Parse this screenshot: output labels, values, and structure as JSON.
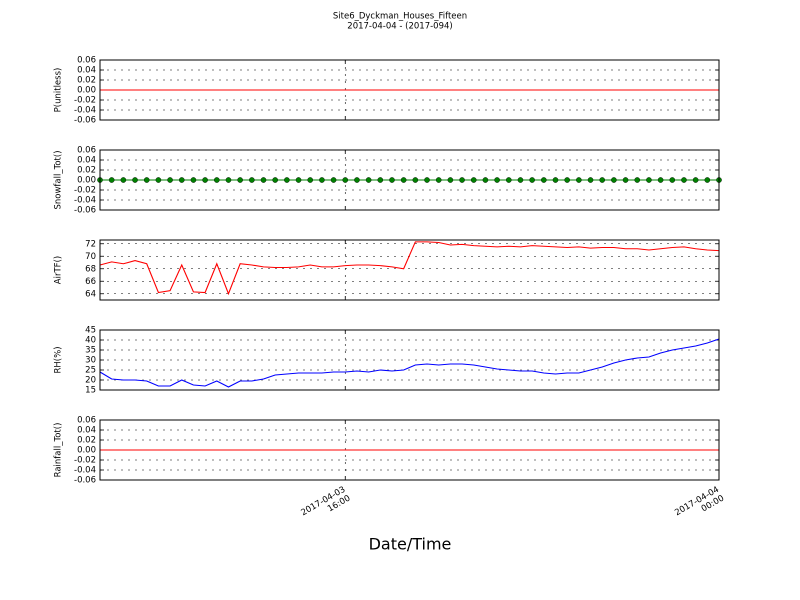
{
  "chart_data": [
    {
      "type": "line",
      "title": "Site6_Dyckman_Houses_Fifteen",
      "subtitle": "2017-04-04 - (2017-094)",
      "ylabel": "P(unitless)",
      "x": [
        "2017-04-03 10:45",
        "2017-04-03 11:00",
        "2017-04-03 11:15",
        "2017-04-03 11:30",
        "2017-04-03 11:45",
        "2017-04-03 12:00",
        "2017-04-03 12:15",
        "2017-04-03 12:30",
        "2017-04-03 12:45",
        "2017-04-03 13:00",
        "2017-04-03 13:15",
        "2017-04-03 13:30",
        "2017-04-03 13:45",
        "2017-04-03 14:00",
        "2017-04-03 14:15",
        "2017-04-03 14:30",
        "2017-04-03 14:45",
        "2017-04-03 15:00",
        "2017-04-03 15:15",
        "2017-04-03 15:30",
        "2017-04-03 15:45",
        "2017-04-03 16:00",
        "2017-04-03 16:15",
        "2017-04-03 16:30",
        "2017-04-03 16:45",
        "2017-04-03 17:00",
        "2017-04-03 17:15",
        "2017-04-03 17:30",
        "2017-04-03 17:45",
        "2017-04-03 18:00",
        "2017-04-03 18:15",
        "2017-04-03 18:30",
        "2017-04-03 18:45",
        "2017-04-03 19:00",
        "2017-04-03 19:15",
        "2017-04-03 19:30",
        "2017-04-03 19:45",
        "2017-04-03 20:00",
        "2017-04-03 20:15",
        "2017-04-03 20:30",
        "2017-04-03 20:45",
        "2017-04-03 21:00",
        "2017-04-03 21:15",
        "2017-04-03 21:30",
        "2017-04-03 21:45",
        "2017-04-03 22:00",
        "2017-04-03 22:15",
        "2017-04-03 22:30",
        "2017-04-03 22:45",
        "2017-04-03 23:00",
        "2017-04-03 23:15",
        "2017-04-03 23:30",
        "2017-04-03 23:45",
        "2017-04-04 00:00"
      ],
      "series": [
        {
          "color": "#ff0000",
          "values": [
            0,
            0,
            0,
            0,
            0,
            0,
            0,
            0,
            0,
            0,
            0,
            0,
            0,
            0,
            0,
            0,
            0,
            0,
            0,
            0,
            0,
            0,
            0,
            0,
            0,
            0,
            0,
            0,
            0,
            0,
            0,
            0,
            0,
            0,
            0,
            0,
            0,
            0,
            0,
            0,
            0,
            0,
            0,
            0,
            0,
            0,
            0,
            0,
            0,
            0,
            0,
            0,
            0,
            0
          ]
        }
      ],
      "xlim": [
        "2017-04-03 10:45",
        "2017-04-04 00:00"
      ],
      "xticks": [
        "2017-04-03 16:00",
        "2017-04-04 00:00"
      ],
      "ylim": [
        -0.06,
        0.06
      ],
      "yticks": [
        -0.06,
        -0.04,
        -0.02,
        {
          "value": 0,
          "label": "0.00"
        },
        0.02,
        0.04,
        0.06
      ],
      "grid": true
    },
    {
      "type": "line",
      "ylabel": "Snowfall_Tot()",
      "x": [
        "2017-04-03 10:45",
        "2017-04-03 11:00",
        "2017-04-03 11:15",
        "2017-04-03 11:30",
        "2017-04-03 11:45",
        "2017-04-03 12:00",
        "2017-04-03 12:15",
        "2017-04-03 12:30",
        "2017-04-03 12:45",
        "2017-04-03 13:00",
        "2017-04-03 13:15",
        "2017-04-03 13:30",
        "2017-04-03 13:45",
        "2017-04-03 14:00",
        "2017-04-03 14:15",
        "2017-04-03 14:30",
        "2017-04-03 14:45",
        "2017-04-03 15:00",
        "2017-04-03 15:15",
        "2017-04-03 15:30",
        "2017-04-03 15:45",
        "2017-04-03 16:00",
        "2017-04-03 16:15",
        "2017-04-03 16:30",
        "2017-04-03 16:45",
        "2017-04-03 17:00",
        "2017-04-03 17:15",
        "2017-04-03 17:30",
        "2017-04-03 17:45",
        "2017-04-03 18:00",
        "2017-04-03 18:15",
        "2017-04-03 18:30",
        "2017-04-03 18:45",
        "2017-04-03 19:00",
        "2017-04-03 19:15",
        "2017-04-03 19:30",
        "2017-04-03 19:45",
        "2017-04-03 20:00",
        "2017-04-03 20:15",
        "2017-04-03 20:30",
        "2017-04-03 20:45",
        "2017-04-03 21:00",
        "2017-04-03 21:15",
        "2017-04-03 21:30",
        "2017-04-03 21:45",
        "2017-04-03 22:00",
        "2017-04-03 22:15",
        "2017-04-03 22:30",
        "2017-04-03 22:45",
        "2017-04-03 23:00",
        "2017-04-03 23:15",
        "2017-04-03 23:30",
        "2017-04-03 23:45",
        "2017-04-04 00:00"
      ],
      "series": [
        {
          "color": "#008000",
          "marker": "o",
          "values": [
            0,
            0,
            0,
            0,
            0,
            0,
            0,
            0,
            0,
            0,
            0,
            0,
            0,
            0,
            0,
            0,
            0,
            0,
            0,
            0,
            0,
            0,
            0,
            0,
            0,
            0,
            0,
            0,
            0,
            0,
            0,
            0,
            0,
            0,
            0,
            0,
            0,
            0,
            0,
            0,
            0,
            0,
            0,
            0,
            0,
            0,
            0,
            0,
            0,
            0,
            0,
            0,
            0,
            0
          ]
        }
      ],
      "xlim": [
        "2017-04-03 10:45",
        "2017-04-04 00:00"
      ],
      "xticks": [
        "2017-04-03 16:00",
        "2017-04-04 00:00"
      ],
      "ylim": [
        -0.06,
        0.06
      ],
      "yticks": [
        -0.06,
        -0.04,
        -0.02,
        {
          "value": 0,
          "label": "0.00"
        },
        0.02,
        0.04,
        0.06
      ],
      "grid": true
    },
    {
      "type": "line",
      "ylabel": "AirTF()",
      "x": [
        "2017-04-03 10:45",
        "2017-04-03 11:00",
        "2017-04-03 11:15",
        "2017-04-03 11:30",
        "2017-04-03 11:45",
        "2017-04-03 12:00",
        "2017-04-03 12:15",
        "2017-04-03 12:30",
        "2017-04-03 12:45",
        "2017-04-03 13:00",
        "2017-04-03 13:15",
        "2017-04-03 13:30",
        "2017-04-03 13:45",
        "2017-04-03 14:00",
        "2017-04-03 14:15",
        "2017-04-03 14:30",
        "2017-04-03 14:45",
        "2017-04-03 15:00",
        "2017-04-03 15:15",
        "2017-04-03 15:30",
        "2017-04-03 15:45",
        "2017-04-03 16:00",
        "2017-04-03 16:15",
        "2017-04-03 16:30",
        "2017-04-03 16:45",
        "2017-04-03 17:00",
        "2017-04-03 17:15",
        "2017-04-03 17:30",
        "2017-04-03 17:45",
        "2017-04-03 18:00",
        "2017-04-03 18:15",
        "2017-04-03 18:30",
        "2017-04-03 18:45",
        "2017-04-03 19:00",
        "2017-04-03 19:15",
        "2017-04-03 19:30",
        "2017-04-03 19:45",
        "2017-04-03 20:00",
        "2017-04-03 20:15",
        "2017-04-03 20:30",
        "2017-04-03 20:45",
        "2017-04-03 21:00",
        "2017-04-03 21:15",
        "2017-04-03 21:30",
        "2017-04-03 21:45",
        "2017-04-03 22:00",
        "2017-04-03 22:15",
        "2017-04-03 22:30",
        "2017-04-03 22:45",
        "2017-04-03 23:00",
        "2017-04-03 23:15",
        "2017-04-03 23:30",
        "2017-04-03 23:45",
        "2017-04-04 00:00"
      ],
      "series": [
        {
          "color": "#ff0000",
          "values": [
            68.6,
            69.1,
            68.8,
            69.3,
            68.8,
            64.2,
            64.5,
            68.6,
            64.3,
            64.2,
            68.8,
            64.0,
            68.8,
            68.6,
            68.3,
            68.2,
            68.2,
            68.3,
            68.6,
            68.3,
            68.3,
            68.5,
            68.6,
            68.6,
            68.5,
            68.3,
            68.0,
            72.3,
            72.3,
            72.2,
            71.8,
            71.9,
            71.7,
            71.6,
            71.5,
            71.6,
            71.5,
            71.7,
            71.6,
            71.5,
            71.4,
            71.5,
            71.3,
            71.4,
            71.4,
            71.2,
            71.2,
            71.0,
            71.2,
            71.4,
            71.5,
            71.2,
            71.0,
            70.9
          ]
        }
      ],
      "xlim": [
        "2017-04-03 10:45",
        "2017-04-04 00:00"
      ],
      "xticks": [
        "2017-04-03 16:00",
        "2017-04-04 00:00"
      ],
      "ylim": [
        63.0,
        72.6
      ],
      "yticks": [
        64,
        66,
        68,
        70,
        72
      ],
      "grid": true
    },
    {
      "type": "line",
      "ylabel": "RH(%)",
      "x": [
        "2017-04-03 10:45",
        "2017-04-03 11:00",
        "2017-04-03 11:15",
        "2017-04-03 11:30",
        "2017-04-03 11:45",
        "2017-04-03 12:00",
        "2017-04-03 12:15",
        "2017-04-03 12:30",
        "2017-04-03 12:45",
        "2017-04-03 13:00",
        "2017-04-03 13:15",
        "2017-04-03 13:30",
        "2017-04-03 13:45",
        "2017-04-03 14:00",
        "2017-04-03 14:15",
        "2017-04-03 14:30",
        "2017-04-03 14:45",
        "2017-04-03 15:00",
        "2017-04-03 15:15",
        "2017-04-03 15:30",
        "2017-04-03 15:45",
        "2017-04-03 16:00",
        "2017-04-03 16:15",
        "2017-04-03 16:30",
        "2017-04-03 16:45",
        "2017-04-03 17:00",
        "2017-04-03 17:15",
        "2017-04-03 17:30",
        "2017-04-03 17:45",
        "2017-04-03 18:00",
        "2017-04-03 18:15",
        "2017-04-03 18:30",
        "2017-04-03 18:45",
        "2017-04-03 19:00",
        "2017-04-03 19:15",
        "2017-04-03 19:30",
        "2017-04-03 19:45",
        "2017-04-03 20:00",
        "2017-04-03 20:15",
        "2017-04-03 20:30",
        "2017-04-03 20:45",
        "2017-04-03 21:00",
        "2017-04-03 21:15",
        "2017-04-03 21:30",
        "2017-04-03 21:45",
        "2017-04-03 22:00",
        "2017-04-03 22:15",
        "2017-04-03 22:30",
        "2017-04-03 22:45",
        "2017-04-03 23:00",
        "2017-04-03 23:15",
        "2017-04-03 23:30",
        "2017-04-03 23:45",
        "2017-04-04 00:00"
      ],
      "series": [
        {
          "color": "#0000ff",
          "values": [
            24,
            20.5,
            20,
            20,
            19.5,
            17,
            17,
            20,
            17.5,
            17,
            19.5,
            16.5,
            19.5,
            19.5,
            20.5,
            22.5,
            23,
            23.5,
            23.5,
            23.5,
            24,
            24,
            24.5,
            24,
            25,
            24.5,
            25,
            27.5,
            28,
            27.5,
            28,
            28,
            27.5,
            26.5,
            25.5,
            25,
            24.5,
            24.5,
            23.5,
            23,
            23.5,
            23.5,
            25,
            26.5,
            28.5,
            30,
            31,
            31.5,
            33.5,
            35,
            36,
            37,
            38.5,
            40.5
          ]
        }
      ],
      "xlim": [
        "2017-04-03 10:45",
        "2017-04-04 00:00"
      ],
      "xticks": [
        "2017-04-03 16:00",
        "2017-04-04 00:00"
      ],
      "ylim": [
        15,
        45
      ],
      "yticks": [
        15,
        20,
        25,
        30,
        35,
        40,
        45
      ],
      "grid": true
    },
    {
      "type": "line",
      "ylabel": "Rainfall_Tot()",
      "xlabel": "Date/Time",
      "x": [
        "2017-04-03 10:45",
        "2017-04-03 11:00",
        "2017-04-03 11:15",
        "2017-04-03 11:30",
        "2017-04-03 11:45",
        "2017-04-03 12:00",
        "2017-04-03 12:15",
        "2017-04-03 12:30",
        "2017-04-03 12:45",
        "2017-04-03 13:00",
        "2017-04-03 13:15",
        "2017-04-03 13:30",
        "2017-04-03 13:45",
        "2017-04-03 14:00",
        "2017-04-03 14:15",
        "2017-04-03 14:30",
        "2017-04-03 14:45",
        "2017-04-03 15:00",
        "2017-04-03 15:15",
        "2017-04-03 15:30",
        "2017-04-03 15:45",
        "2017-04-03 16:00",
        "2017-04-03 16:15",
        "2017-04-03 16:30",
        "2017-04-03 16:45",
        "2017-04-03 17:00",
        "2017-04-03 17:15",
        "2017-04-03 17:30",
        "2017-04-03 17:45",
        "2017-04-03 18:00",
        "2017-04-03 18:15",
        "2017-04-03 18:30",
        "2017-04-03 18:45",
        "2017-04-03 19:00",
        "2017-04-03 19:15",
        "2017-04-03 19:30",
        "2017-04-03 19:45",
        "2017-04-03 20:00",
        "2017-04-03 20:15",
        "2017-04-03 20:30",
        "2017-04-03 20:45",
        "2017-04-03 21:00",
        "2017-04-03 21:15",
        "2017-04-03 21:30",
        "2017-04-03 21:45",
        "2017-04-03 22:00",
        "2017-04-03 22:15",
        "2017-04-03 22:30",
        "2017-04-03 22:45",
        "2017-04-03 23:00",
        "2017-04-03 23:15",
        "2017-04-03 23:30",
        "2017-04-03 23:45",
        "2017-04-04 00:00"
      ],
      "series": [
        {
          "color": "#ff0000",
          "values": [
            0,
            0,
            0,
            0,
            0,
            0,
            0,
            0,
            0,
            0,
            0,
            0,
            0,
            0,
            0,
            0,
            0,
            0,
            0,
            0,
            0,
            0,
            0,
            0,
            0,
            0,
            0,
            0,
            0,
            0,
            0,
            0,
            0,
            0,
            0,
            0,
            0,
            0,
            0,
            0,
            0,
            0,
            0,
            0,
            0,
            0,
            0,
            0,
            0,
            0,
            0,
            0,
            0,
            0
          ]
        }
      ],
      "xlim": [
        "2017-04-03 10:45",
        "2017-04-04 00:00"
      ],
      "xticks": [
        {
          "value": "2017-04-03 16:00",
          "label": "2017-04-03\n16:00"
        },
        {
          "value": "2017-04-04 00:00",
          "label": "2017-04-04\n00:00"
        }
      ],
      "ylim": [
        -0.06,
        0.06
      ],
      "yticks": [
        -0.06,
        -0.04,
        -0.02,
        {
          "value": 0,
          "label": "0.00"
        },
        0.02,
        0.04,
        0.06
      ],
      "grid": true
    }
  ]
}
